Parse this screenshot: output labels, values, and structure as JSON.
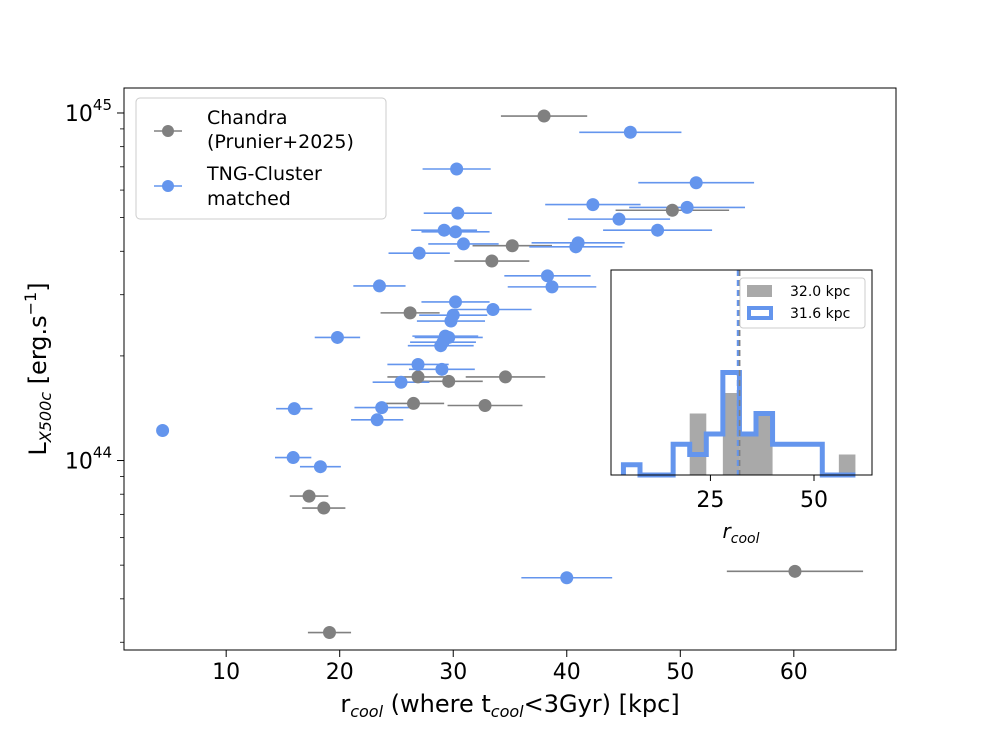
{
  "chart_data": [
    {
      "type": "scatter",
      "xlabel_main": "r",
      "xlabel_sub": "cool",
      "xlabel_mid": " (where t",
      "xlabel_sub2": "cool",
      "xlabel_end": "<3Gyr) [kpc]",
      "ylabel_main": "L",
      "ylabel_sub": "X500c",
      "ylabel_end": " [erg.s",
      "ylabel_sup": "−1",
      "ylabel_close": "]",
      "xlim": [
        1,
        69
      ],
      "ylim": [
        28500000000000000000000000000000000000000000,
        1180000000000000000000000000000000000000000000
      ],
      "x_ticks": [
        10,
        20,
        30,
        40,
        50,
        60
      ],
      "y_major_ticks": [
        {
          "value": 100000000000000000000000000000000000000000000,
          "base": "10",
          "exp": "44"
        },
        {
          "value": 1000000000000000000000000000000000000000000000,
          "base": "10",
          "exp": "45"
        }
      ],
      "legend_position": "upper-left",
      "series": [
        {
          "name": "Chandra (Prunier+2025)",
          "legend_lines": [
            "Chandra",
            "(Prunier+2025)"
          ],
          "color": "#808080",
          "points": [
            {
              "x": 38.0,
              "xerr": 3.8,
              "y": 980000000000000000000000000000000000000000000
            },
            {
              "x": 49.3,
              "xerr": 5.0,
              "y": 525000000000000000000000000000000000000000000
            },
            {
              "x": 35.2,
              "xerr": 3.5,
              "y": 415000000000000000000000000000000000000000000
            },
            {
              "x": 33.4,
              "xerr": 3.3,
              "y": 375000000000000000000000000000000000000000000
            },
            {
              "x": 26.2,
              "xerr": 2.6,
              "y": 266000000000000000000000000000000000000000000
            },
            {
              "x": 26.9,
              "xerr": 2.7,
              "y": 174000000000000000000000000000000000000000000
            },
            {
              "x": 29.6,
              "xerr": 3.0,
              "y": 169000000000000000000000000000000000000000000
            },
            {
              "x": 34.6,
              "xerr": 3.5,
              "y": 174000000000000000000000000000000000000000000
            },
            {
              "x": 26.5,
              "xerr": 2.7,
              "y": 146000000000000000000000000000000000000000000
            },
            {
              "x": 32.8,
              "xerr": 3.3,
              "y": 144000000000000000000000000000000000000000000
            },
            {
              "x": 17.3,
              "xerr": 1.7,
              "y": 79000000000000000000000000000000000000000000
            },
            {
              "x": 18.6,
              "xerr": 1.9,
              "y": 73000000000000000000000000000000000000000000
            },
            {
              "x": 60.1,
              "xerr": 6.0,
              "y": 48000000000000000000000000000000000000000000
            },
            {
              "x": 19.1,
              "xerr": 1.9,
              "y": 32000000000000000000000000000000000000000000
            }
          ]
        },
        {
          "name": "TNG-Cluster matched",
          "legend_lines": [
            "TNG-Cluster",
            "matched"
          ],
          "color": "#6495ED",
          "points": [
            {
              "x": 4.4,
              "xerr": 0.0,
              "y": 122000000000000000000000000000000000000000000
            },
            {
              "x": 45.6,
              "xerr": 4.5,
              "y": 880000000000000000000000000000000000000000000
            },
            {
              "x": 30.3,
              "xerr": 3.0,
              "y": 690000000000000000000000000000000000000000000
            },
            {
              "x": 51.4,
              "xerr": 5.1,
              "y": 630000000000000000000000000000000000000000000
            },
            {
              "x": 42.3,
              "xerr": 4.2,
              "y": 545000000000000000000000000000000000000000000
            },
            {
              "x": 50.6,
              "xerr": 5.1,
              "y": 535000000000000000000000000000000000000000000
            },
            {
              "x": 30.4,
              "xerr": 3.0,
              "y": 515000000000000000000000000000000000000000000
            },
            {
              "x": 44.6,
              "xerr": 4.5,
              "y": 495000000000000000000000000000000000000000000
            },
            {
              "x": 29.2,
              "xerr": 2.9,
              "y": 460000000000000000000000000000000000000000000
            },
            {
              "x": 30.2,
              "xerr": 3.0,
              "y": 455000000000000000000000000000000000000000000
            },
            {
              "x": 48.0,
              "xerr": 4.8,
              "y": 460000000000000000000000000000000000000000000
            },
            {
              "x": 30.9,
              "xerr": 3.1,
              "y": 420000000000000000000000000000000000000000000
            },
            {
              "x": 41.0,
              "xerr": 4.1,
              "y": 423000000000000000000000000000000000000000000
            },
            {
              "x": 40.8,
              "xerr": 4.1,
              "y": 412000000000000000000000000000000000000000000
            },
            {
              "x": 27.0,
              "xerr": 2.7,
              "y": 395000000000000000000000000000000000000000000
            },
            {
              "x": 38.3,
              "xerr": 3.8,
              "y": 340000000000000000000000000000000000000000000
            },
            {
              "x": 23.5,
              "xerr": 2.3,
              "y": 318000000000000000000000000000000000000000000
            },
            {
              "x": 38.7,
              "xerr": 3.9,
              "y": 316000000000000000000000000000000000000000000
            },
            {
              "x": 30.2,
              "xerr": 3.0,
              "y": 286000000000000000000000000000000000000000000
            },
            {
              "x": 33.5,
              "xerr": 3.4,
              "y": 272000000000000000000000000000000000000000000
            },
            {
              "x": 30.0,
              "xerr": 3.0,
              "y": 262000000000000000000000000000000000000000000
            },
            {
              "x": 29.8,
              "xerr": 3.0,
              "y": 252000000000000000000000000000000000000000000
            },
            {
              "x": 19.8,
              "xerr": 2.0,
              "y": 226000000000000000000000000000000000000000000
            },
            {
              "x": 29.3,
              "xerr": 2.9,
              "y": 228000000000000000000000000000000000000000000
            },
            {
              "x": 29.6,
              "xerr": 3.0,
              "y": 226000000000000000000000000000000000000000000
            },
            {
              "x": 29.1,
              "xerr": 2.9,
              "y": 219000000000000000000000000000000000000000000
            },
            {
              "x": 28.9,
              "xerr": 2.9,
              "y": 214000000000000000000000000000000000000000000
            },
            {
              "x": 26.9,
              "xerr": 2.7,
              "y": 189000000000000000000000000000000000000000000
            },
            {
              "x": 29.0,
              "xerr": 2.9,
              "y": 183000000000000000000000000000000000000000000
            },
            {
              "x": 25.4,
              "xerr": 2.5,
              "y": 168000000000000000000000000000000000000000000
            },
            {
              "x": 16.0,
              "xerr": 1.6,
              "y": 141000000000000000000000000000000000000000000
            },
            {
              "x": 23.7,
              "xerr": 2.4,
              "y": 142000000000000000000000000000000000000000000
            },
            {
              "x": 23.3,
              "xerr": 2.3,
              "y": 131000000000000000000000000000000000000000000
            },
            {
              "x": 15.9,
              "xerr": 1.6,
              "y": 102000000000000000000000000000000000000000000
            },
            {
              "x": 18.3,
              "xerr": 1.8,
              "y": 96000000000000000000000000000000000000000000
            },
            {
              "x": 40.0,
              "xerr": 4.0,
              "y": 46000000000000000000000000000000000000000000
            }
          ]
        }
      ]
    },
    {
      "type": "histogram",
      "xlabel_main": "r",
      "xlabel_sub": "cool",
      "xlim": [
        1,
        64
      ],
      "ylim": [
        0,
        10
      ],
      "x_ticks": [
        25,
        50
      ],
      "bin_edges": [
        4,
        8,
        12,
        16,
        20,
        24,
        28,
        32,
        36,
        40,
        44,
        48,
        52,
        56,
        60
      ],
      "series": [
        {
          "name": "32.0 kpc",
          "style": "filled",
          "color": "#a9a9a9",
          "counts": [
            0,
            0,
            0,
            0,
            3,
            0,
            4,
            2,
            3,
            0,
            0,
            0,
            0,
            1
          ],
          "median": 32.0
        },
        {
          "name": "31.6 kpc",
          "style": "step",
          "color": "#6495ED",
          "counts": [
            0.5,
            0,
            0,
            1.5,
            1,
            2,
            5,
            2,
            3,
            1.5,
            1.5,
            1.5,
            0,
            0
          ],
          "median": 31.6
        }
      ]
    }
  ]
}
